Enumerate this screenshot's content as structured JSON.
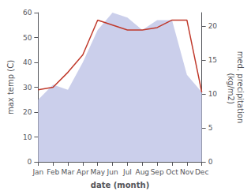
{
  "chart_data": {
    "type": "line",
    "categories": [
      "Jan",
      "Feb",
      "Mar",
      "Apr",
      "May",
      "Jun",
      "Jul",
      "Aug",
      "Sep",
      "Oct",
      "Nov",
      "Dec"
    ],
    "series": [
      {
        "type": "area",
        "color": "#c5cae9",
        "values": [
          25,
          31,
          29,
          40,
          53,
          60,
          58,
          53,
          57,
          57,
          35,
          28
        ]
      },
      {
        "type": "line",
        "color": "#c0392b",
        "values": [
          29,
          30,
          36,
          43,
          57,
          55,
          53,
          53,
          54,
          57,
          57,
          28
        ]
      }
    ],
    "xlabel": "date (month)",
    "ylabel": "max temp (C)",
    "y2label": "med. precipitation\n (kg/m2)",
    "ylim": [
      0,
      60
    ],
    "yticks": [
      0,
      10,
      20,
      30,
      40,
      50,
      60
    ],
    "y2lim": [
      0,
      22
    ],
    "y2ticks": [
      0,
      5,
      10,
      15,
      20
    ],
    "grid": false
  }
}
